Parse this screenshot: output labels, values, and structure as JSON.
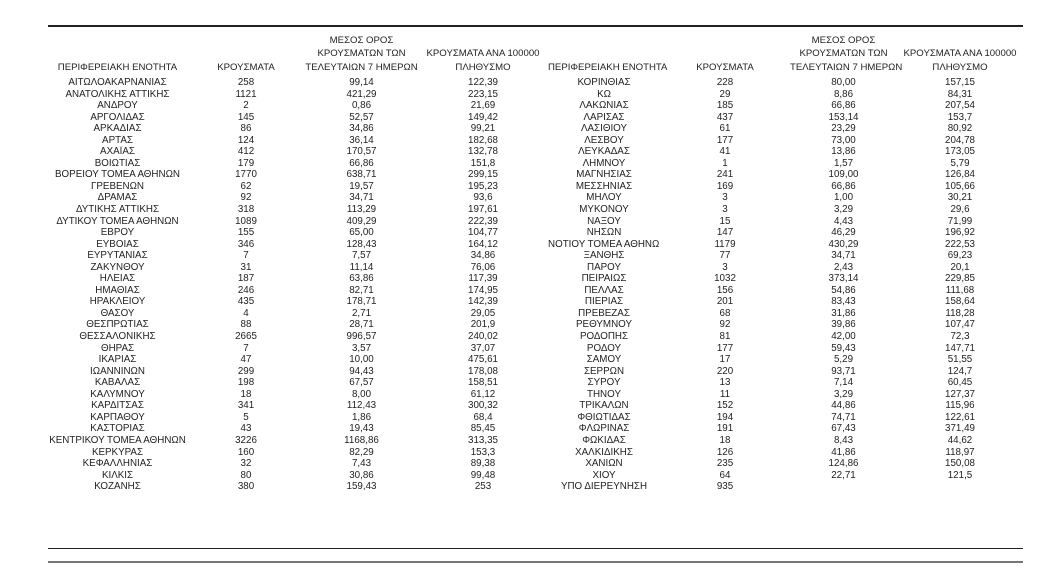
{
  "headers": {
    "region": "ΠΕΡΙΦΕΡΕΙΑΚΗ ΕΝΟΤΗΤΑ",
    "cases": "ΚΡΟΥΣΜΑΤΑ",
    "avg_line1": "ΜΕΣΟΣ ΟΡΟΣ",
    "avg_line2": "ΚΡΟΥΣΜΑΤΩΝ ΤΩΝ",
    "avg_line3": "ΤΕΛΕΥΤΑΙΩΝ 7 ΗΜΕΡΩΝ",
    "per100k_line1": "ΚΡΟΥΣΜΑΤΑ ΑΝΑ 100000",
    "per100k_line2": "ΠΛΗΘΥΣΜΟ"
  },
  "left_rows": [
    [
      "ΑΙΤΩΛΟΑΚΑΡΝΑΝΙΑΣ",
      "258",
      "99,14",
      "122,39"
    ],
    [
      "ΑΝΑΤΟΛΙΚΗΣ ΑΤΤΙΚΗΣ",
      "1121",
      "421,29",
      "223,15"
    ],
    [
      "ΑΝΔΡΟΥ",
      "2",
      "0,86",
      "21,69"
    ],
    [
      "ΑΡΓΟΛΙΔΑΣ",
      "145",
      "52,57",
      "149,42"
    ],
    [
      "ΑΡΚΑΔΙΑΣ",
      "86",
      "34,86",
      "99,21"
    ],
    [
      "ΑΡΤΑΣ",
      "124",
      "36,14",
      "182,68"
    ],
    [
      "ΑΧΑΪΑΣ",
      "412",
      "170,57",
      "132,78"
    ],
    [
      "ΒΟΙΩΤΙΑΣ",
      "179",
      "66,86",
      "151,8"
    ],
    [
      "ΒΟΡΕΙΟΥ ΤΟΜΕΑ ΑΘΗΝΩΝ",
      "1770",
      "638,71",
      "299,15"
    ],
    [
      "ΓΡΕΒΕΝΩΝ",
      "62",
      "19,57",
      "195,23"
    ],
    [
      "ΔΡΑΜΑΣ",
      "92",
      "34,71",
      "93,6"
    ],
    [
      "ΔΥΤΙΚΗΣ ΑΤΤΙΚΗΣ",
      "318",
      "113,29",
      "197,61"
    ],
    [
      "ΔΥΤΙΚΟΥ ΤΟΜΕΑ ΑΘΗΝΩΝ",
      "1089",
      "409,29",
      "222,39"
    ],
    [
      "ΕΒΡΟΥ",
      "155",
      "65,00",
      "104,77"
    ],
    [
      "ΕΥΒΟΙΑΣ",
      "346",
      "128,43",
      "164,12"
    ],
    [
      "ΕΥΡΥΤΑΝΙΑΣ",
      "7",
      "7,57",
      "34,86"
    ],
    [
      "ΖΑΚΥΝΘΟΥ",
      "31",
      "11,14",
      "76,06"
    ],
    [
      "ΗΛΕΙΑΣ",
      "187",
      "63,86",
      "117,39"
    ],
    [
      "ΗΜΑΘΙΑΣ",
      "246",
      "82,71",
      "174,95"
    ],
    [
      "ΗΡΑΚΛΕΙΟΥ",
      "435",
      "178,71",
      "142,39"
    ],
    [
      "ΘΑΣΟΥ",
      "4",
      "2,71",
      "29,05"
    ],
    [
      "ΘΕΣΠΡΩΤΙΑΣ",
      "88",
      "28,71",
      "201,9"
    ],
    [
      "ΘΕΣΣΑΛΟΝΙΚΗΣ",
      "2665",
      "996,57",
      "240,02"
    ],
    [
      "ΘΗΡΑΣ",
      "7",
      "3,57",
      "37,07"
    ],
    [
      "ΙΚΑΡΙΑΣ",
      "47",
      "10,00",
      "475,61"
    ],
    [
      "ΙΩΑΝΝΙΝΩΝ",
      "299",
      "94,43",
      "178,08"
    ],
    [
      "ΚΑΒΑΛΑΣ",
      "198",
      "67,57",
      "158,51"
    ],
    [
      "ΚΑΛΥΜΝΟΥ",
      "18",
      "8,00",
      "61,12"
    ],
    [
      "ΚΑΡΔΙΤΣΑΣ",
      "341",
      "112,43",
      "300,32"
    ],
    [
      "ΚΑΡΠΑΘΟΥ",
      "5",
      "1,86",
      "68,4"
    ],
    [
      "ΚΑΣΤΟΡΙΑΣ",
      "43",
      "19,43",
      "85,45"
    ],
    [
      "ΚΕΝΤΡΙΚΟΥ ΤΟΜΕΑ ΑΘΗΝΩΝ",
      "3226",
      "1168,86",
      "313,35"
    ],
    [
      "ΚΕΡΚΥΡΑΣ",
      "160",
      "82,29",
      "153,3"
    ],
    [
      "ΚΕΦΑΛΛΗΝΙΑΣ",
      "32",
      "7,43",
      "89,38"
    ],
    [
      "ΚΙΛΚΙΣ",
      "80",
      "30,86",
      "99,48"
    ],
    [
      "ΚΟΖΑΝΗΣ",
      "380",
      "159,43",
      "253"
    ]
  ],
  "right_rows": [
    [
      "ΚΟΡΙΝΘΙΑΣ",
      "228",
      "80,00",
      "157,15"
    ],
    [
      "ΚΩ",
      "29",
      "8,86",
      "84,31"
    ],
    [
      "ΛΑΚΩΝΙΑΣ",
      "185",
      "66,86",
      "207,54"
    ],
    [
      "ΛΑΡΙΣΑΣ",
      "437",
      "153,14",
      "153,7"
    ],
    [
      "ΛΑΣΙΘΙΟΥ",
      "61",
      "23,29",
      "80,92"
    ],
    [
      "ΛΕΣΒΟΥ",
      "177",
      "73,00",
      "204,78"
    ],
    [
      "ΛΕΥΚΑΔΑΣ",
      "41",
      "13,86",
      "173,05"
    ],
    [
      "ΛΗΜΝΟΥ",
      "1",
      "1,57",
      "5,79"
    ],
    [
      "ΜΑΓΝΗΣΙΑΣ",
      "241",
      "109,00",
      "126,84"
    ],
    [
      "ΜΕΣΣΗΝΙΑΣ",
      "169",
      "66,86",
      "105,66"
    ],
    [
      "ΜΗΛΟΥ",
      "3",
      "1,00",
      "30,21"
    ],
    [
      "ΜΥΚΟΝΟΥ",
      "3",
      "3,29",
      "29,6"
    ],
    [
      "ΝΑΞΟΥ",
      "15",
      "4,43",
      "71,99"
    ],
    [
      "ΝΗΣΩΝ",
      "147",
      "46,29",
      "196,92"
    ],
    [
      "ΝΟΤΙΟΥ ΤΟΜΕΑ ΑΘΗΝΩΝ",
      "1179",
      "430,29",
      "222,53"
    ],
    [
      "ΞΑΝΘΗΣ",
      "77",
      "34,71",
      "69,23"
    ],
    [
      "ΠΑΡΟΥ",
      "3",
      "2,43",
      "20,1"
    ],
    [
      "ΠΕΙΡΑΙΩΣ",
      "1032",
      "373,14",
      "229,85"
    ],
    [
      "ΠΕΛΛΑΣ",
      "156",
      "54,86",
      "111,68"
    ],
    [
      "ΠΙΕΡΙΑΣ",
      "201",
      "83,43",
      "158,64"
    ],
    [
      "ΠΡΕΒΕΖΑΣ",
      "68",
      "31,86",
      "118,28"
    ],
    [
      "ΡΕΘΥΜΝΟΥ",
      "92",
      "39,86",
      "107,47"
    ],
    [
      "ΡΟΔΟΠΗΣ",
      "81",
      "42,00",
      "72,3"
    ],
    [
      "ΡΟΔΟΥ",
      "177",
      "59,43",
      "147,71"
    ],
    [
      "ΣΑΜΟΥ",
      "17",
      "5,29",
      "51,55"
    ],
    [
      "ΣΕΡΡΩΝ",
      "220",
      "93,71",
      "124,7"
    ],
    [
      "ΣΥΡΟΥ",
      "13",
      "7,14",
      "60,45"
    ],
    [
      "ΤΗΝΟΥ",
      "11",
      "3,29",
      "127,37"
    ],
    [
      "ΤΡΙΚΑΛΩΝ",
      "152",
      "44,86",
      "115,96"
    ],
    [
      "ΦΘΙΩΤΙΔΑΣ",
      "194",
      "74,71",
      "122,61"
    ],
    [
      "ΦΛΩΡΙΝΑΣ",
      "191",
      "67,43",
      "371,49"
    ],
    [
      "ΦΩΚΙΔΑΣ",
      "18",
      "8,43",
      "44,62"
    ],
    [
      "ΧΑΛΚΙΔΙΚΗΣ",
      "126",
      "41,86",
      "118,97"
    ],
    [
      "ΧΑΝΙΩΝ",
      "235",
      "124,86",
      "150,08"
    ],
    [
      "ΧΙΟΥ",
      "64",
      "22,71",
      "121,5"
    ],
    [
      "ΥΠΟ ΔΙΕΡΕΥΝΗΣΗ",
      "935",
      "",
      ""
    ]
  ]
}
